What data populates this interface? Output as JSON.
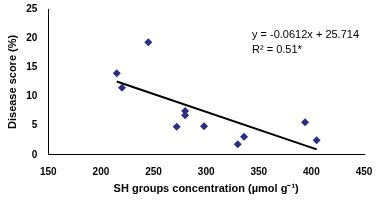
{
  "chart_data": {
    "type": "scatter",
    "x_label": "SH groups concentration (µmol g⁻¹)",
    "y_label": "Disease score (%)",
    "annotations": [
      "y = -0.0612x + 25.714",
      "R² = 0.51*"
    ],
    "series": [
      {
        "type": "scatter",
        "color": "#2b2f7f",
        "marker": "diamond",
        "x": [
          215,
          220,
          245,
          272,
          280,
          280,
          298,
          330,
          336,
          394,
          405
        ],
        "values": [
          14,
          11.5,
          19.3,
          4.8,
          7.5,
          6.8,
          4.9,
          1.8,
          3.1,
          5.6,
          2.5
        ]
      },
      {
        "type": "line",
        "color": "#000000",
        "line_style": "solid",
        "x": [
          215,
          405
        ],
        "values": [
          12.56,
          0.93
        ]
      }
    ],
    "xlim": [
      150,
      450
    ],
    "xticks": [
      150,
      200,
      250,
      300,
      350,
      400,
      450
    ],
    "ylim": [
      0,
      25
    ],
    "yticks": [
      0,
      5,
      10,
      15,
      20,
      25
    ],
    "grid": false
  }
}
